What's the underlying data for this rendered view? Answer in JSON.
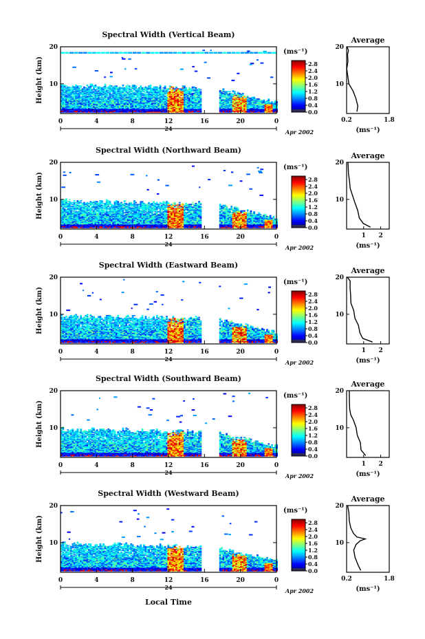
{
  "chart_data": {
    "type": "heatmap",
    "month_label": "Apr 2002",
    "x_axis_title": "Local Time",
    "x_range": [
      0,
      24
    ],
    "x_ticks": [
      "0",
      "4",
      "8",
      "12",
      "16",
      "20",
      "0"
    ],
    "day_label": "24",
    "y_axis_title": "Height (km)",
    "y_range": [
      2,
      20
    ],
    "y_ticks": [
      "10",
      "20"
    ],
    "colorbar_unit": "(ms⁻¹)",
    "colorbar_ticks": [
      "0.0",
      "0.4",
      "0.8",
      "1.2",
      "1.6",
      "2.0",
      "2.4",
      "2.8"
    ],
    "colorbar_range": [
      0.0,
      3.0
    ],
    "avg_title": "Average",
    "avg_xlabel": "(ms⁻¹)",
    "avg_y_ticks": [
      "10",
      "20"
    ],
    "data_gap_hours": [
      15.5,
      17.5
    ],
    "panels": [
      {
        "beam": "Spectral Width (Vertical Beam)",
        "avg_xticks": [
          "0.2",
          "1.8"
        ],
        "avg_xlim": [
          0.2,
          1.8
        ],
        "profile": [
          [
            2.5,
            0.62
          ],
          [
            4,
            0.62
          ],
          [
            6,
            0.55
          ],
          [
            8,
            0.42
          ],
          [
            10,
            0.32
          ],
          [
            12,
            0.25
          ],
          [
            14,
            0.22
          ],
          [
            16,
            0.25
          ],
          [
            18,
            0.2
          ],
          [
            19,
            0.3
          ],
          [
            20,
            0.2
          ]
        ]
      },
      {
        "beam": "Spectral Width (Northward Beam)",
        "avg_xticks": [
          "1",
          "2"
        ],
        "avg_xlim": [
          0,
          2.5
        ],
        "profile": [
          [
            2.5,
            1.4
          ],
          [
            3.5,
            1.0
          ],
          [
            5,
            0.8
          ],
          [
            7,
            0.6
          ],
          [
            9,
            0.5
          ],
          [
            11,
            0.35
          ],
          [
            13,
            0.25
          ],
          [
            15,
            0.2
          ],
          [
            17,
            0.15
          ],
          [
            20,
            0.1
          ]
        ]
      },
      {
        "beam": "Spectral Width (Eastward Beam)",
        "avg_xticks": [
          "1",
          "2"
        ],
        "avg_xlim": [
          0,
          2.5
        ],
        "profile": [
          [
            2.5,
            1.5
          ],
          [
            3.5,
            1.0
          ],
          [
            5,
            0.8
          ],
          [
            7,
            0.65
          ],
          [
            9,
            0.5
          ],
          [
            11,
            0.4
          ],
          [
            13,
            0.3
          ],
          [
            15,
            0.25
          ],
          [
            17,
            0.2
          ],
          [
            19,
            0.15
          ],
          [
            20,
            0.1
          ]
        ]
      },
      {
        "beam": "Spectral Width (Southward Beam)",
        "avg_xticks": [
          "1",
          "2"
        ],
        "avg_xlim": [
          0,
          2.5
        ],
        "profile": [
          [
            2.5,
            1.1
          ],
          [
            4,
            0.9
          ],
          [
            6,
            0.8
          ],
          [
            8,
            0.65
          ],
          [
            10,
            0.5
          ],
          [
            12,
            0.35
          ],
          [
            13.5,
            0.3
          ],
          [
            15,
            0.2
          ],
          [
            17,
            0.15
          ],
          [
            20,
            0.1
          ]
        ]
      },
      {
        "beam": "Spectral Width (Westward Beam)",
        "avg_xticks": [
          "0.2",
          "1.8"
        ],
        "avg_xlim": [
          0.2,
          1.8
        ],
        "profile": [
          [
            2.5,
            0.7
          ],
          [
            4,
            0.6
          ],
          [
            6,
            0.55
          ],
          [
            8,
            0.5
          ],
          [
            9.5,
            0.55
          ],
          [
            10.5,
            0.7
          ],
          [
            11,
            0.9
          ],
          [
            11.5,
            0.6
          ],
          [
            12.5,
            0.45
          ],
          [
            14,
            0.35
          ],
          [
            16,
            0.3
          ],
          [
            18,
            0.25
          ],
          [
            20,
            0.2
          ]
        ]
      }
    ]
  }
}
